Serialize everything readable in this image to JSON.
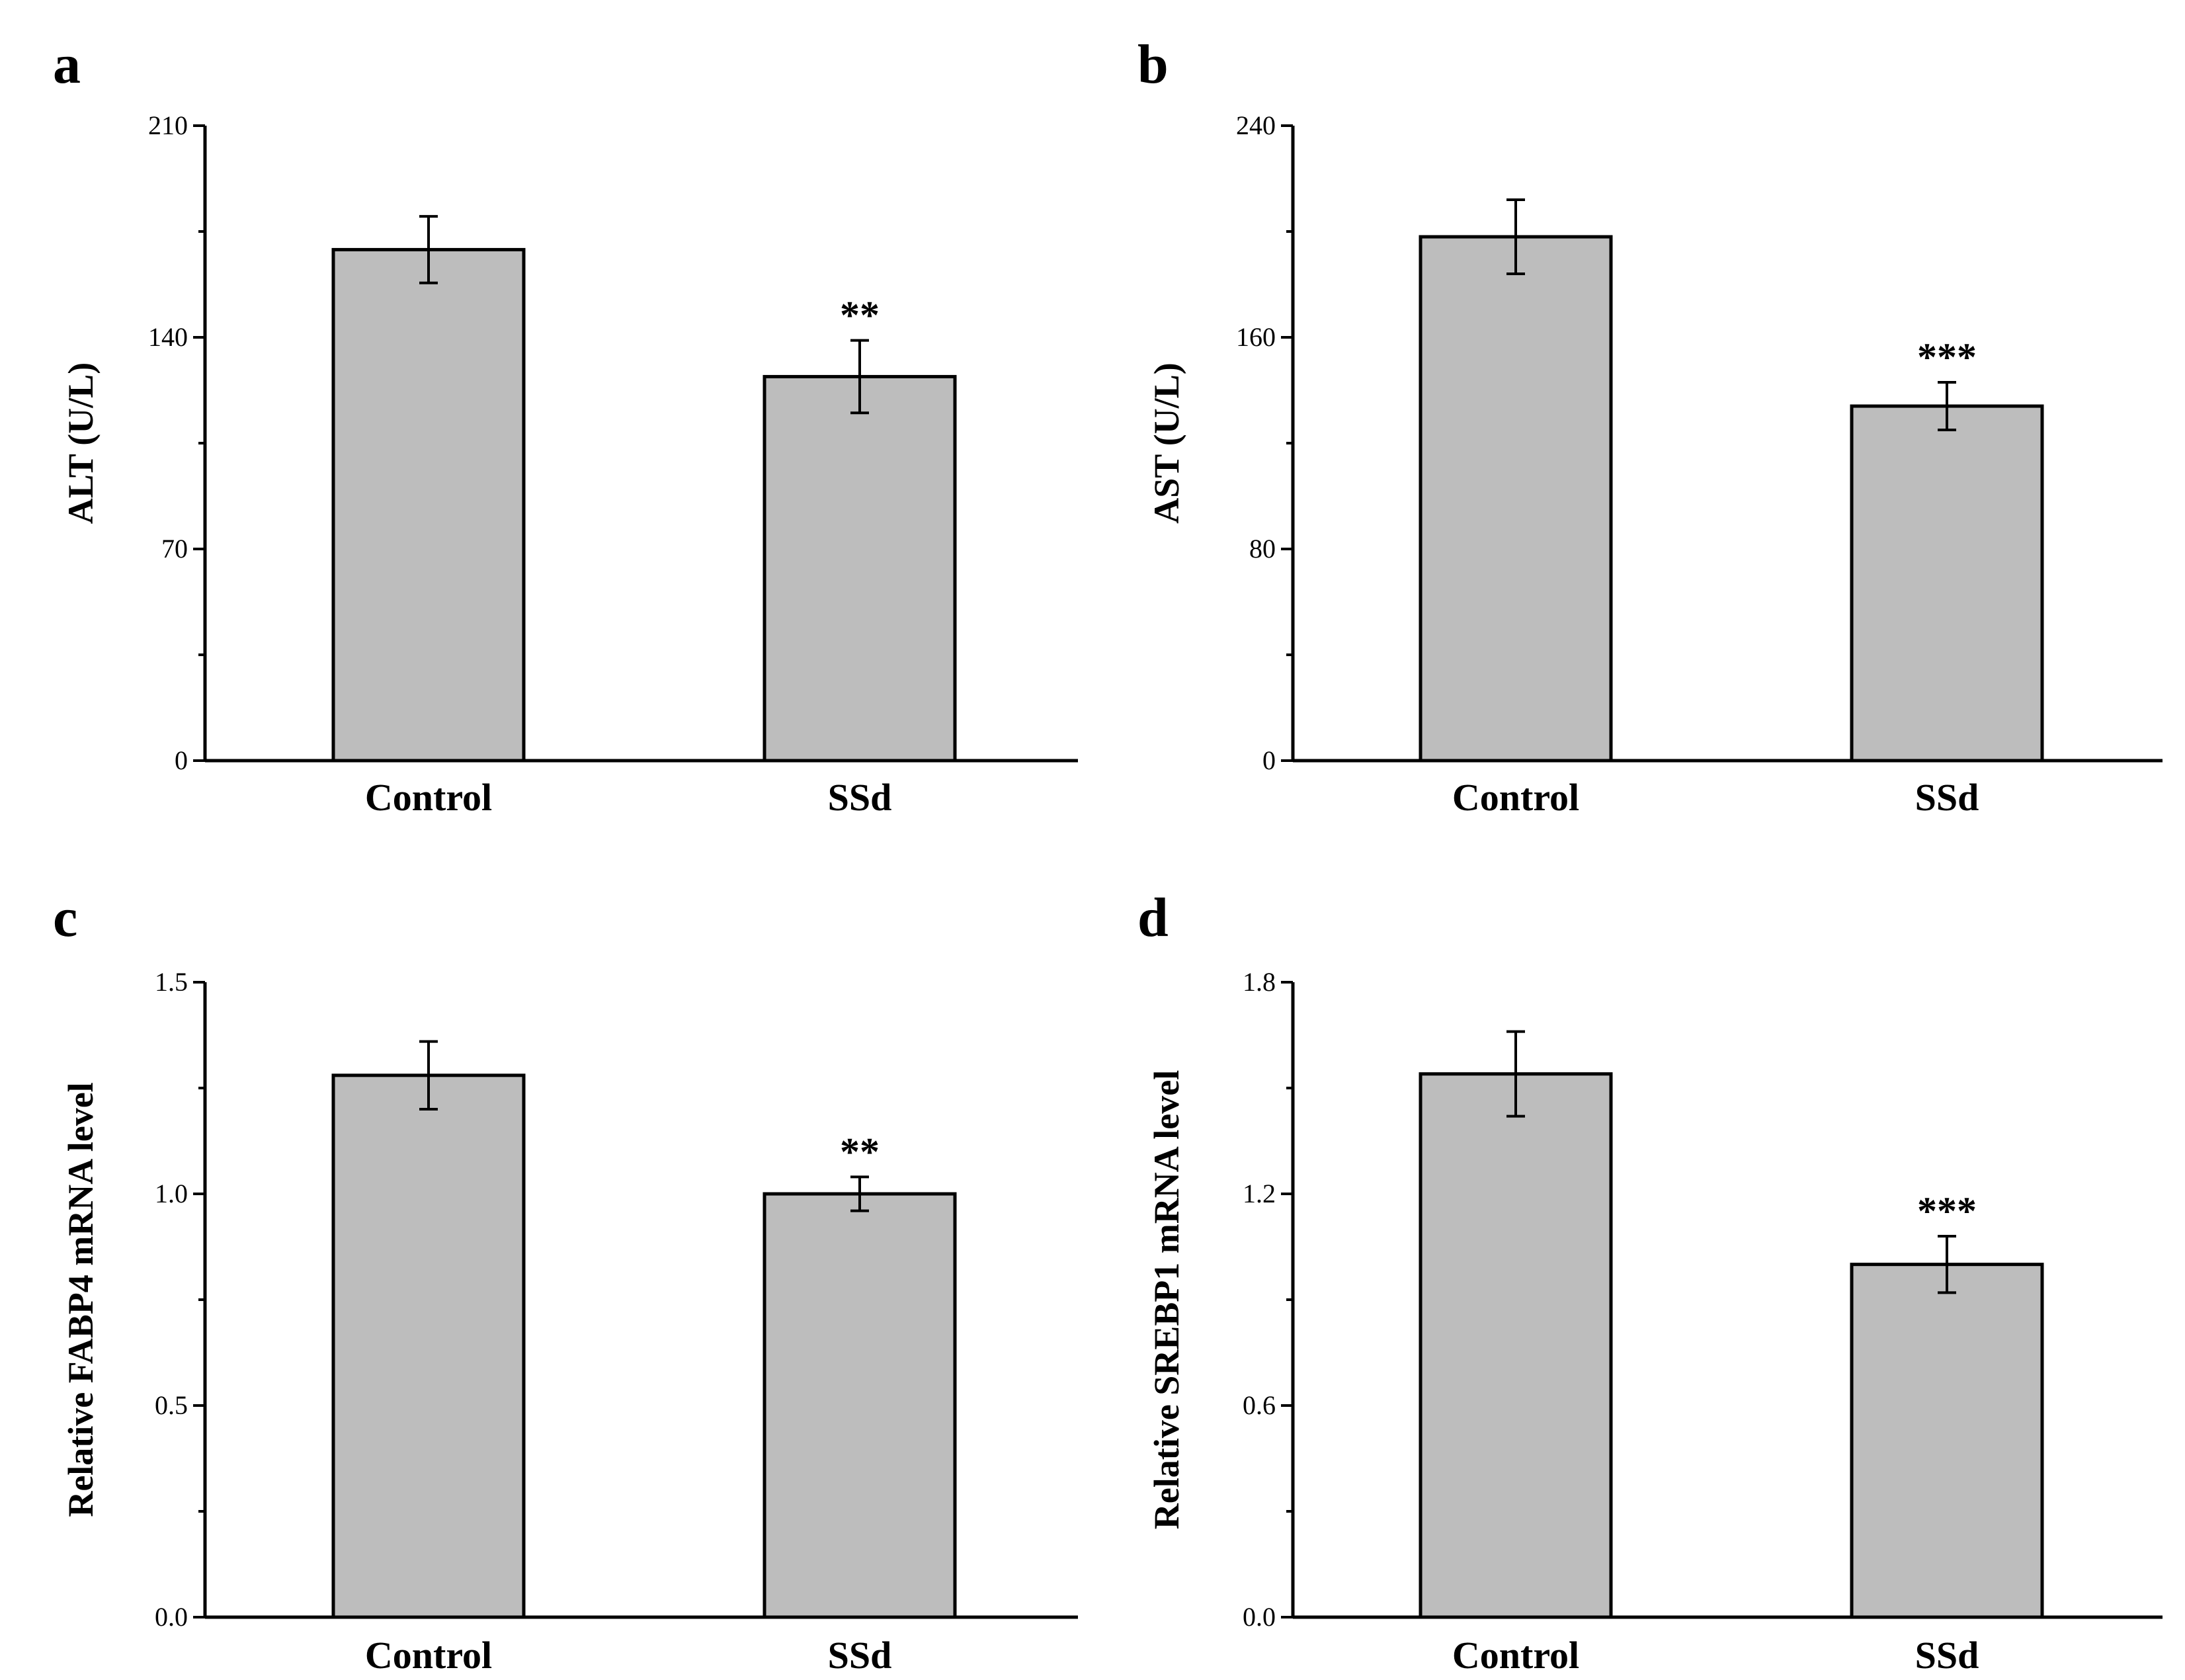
{
  "chart_data": [
    {
      "panel": "a",
      "type": "bar",
      "categories": [
        "Control",
        "SSd"
      ],
      "values": [
        169,
        127
      ],
      "errors": [
        11,
        12
      ],
      "significance": [
        "",
        "**"
      ],
      "ylabel": "ALT (U/L)",
      "ylim": [
        0,
        210
      ],
      "yticks": [
        0,
        70,
        140,
        210
      ],
      "ytick_labels": [
        "0",
        "70",
        "140",
        "210"
      ],
      "bar_color": "#bdbdbd"
    },
    {
      "panel": "b",
      "type": "bar",
      "categories": [
        "Control",
        "SSd"
      ],
      "values": [
        198,
        134
      ],
      "errors": [
        14,
        9
      ],
      "significance": [
        "",
        "***"
      ],
      "ylabel": "AST (U/L)",
      "ylim": [
        0,
        240
      ],
      "yticks": [
        0,
        80,
        160,
        240
      ],
      "ytick_labels": [
        "0",
        "80",
        "160",
        "240"
      ],
      "bar_color": "#bdbdbd"
    },
    {
      "panel": "c",
      "type": "bar",
      "categories": [
        "Control",
        "SSd"
      ],
      "values": [
        1.28,
        1.0
      ],
      "errors": [
        0.08,
        0.04
      ],
      "significance": [
        "",
        "**"
      ],
      "ylabel": "Relative FABP4 mRNA level",
      "ylim": [
        0,
        1.5
      ],
      "yticks": [
        0,
        0.5,
        1.0,
        1.5
      ],
      "ytick_labels": [
        "0.0",
        "0.5",
        "1.0",
        "1.5"
      ],
      "bar_color": "#bdbdbd"
    },
    {
      "panel": "d",
      "type": "bar",
      "categories": [
        "Control",
        "SSd"
      ],
      "values": [
        1.54,
        1.0
      ],
      "errors": [
        0.12,
        0.08
      ],
      "significance": [
        "",
        "***"
      ],
      "ylabel": "Relative SREBP1 mRNA level",
      "ylim": [
        0,
        1.8
      ],
      "yticks": [
        0,
        0.6,
        1.2,
        1.8
      ],
      "ytick_labels": [
        "0.0",
        "0.6",
        "1.2",
        "1.8"
      ],
      "bar_color": "#bdbdbd"
    }
  ]
}
